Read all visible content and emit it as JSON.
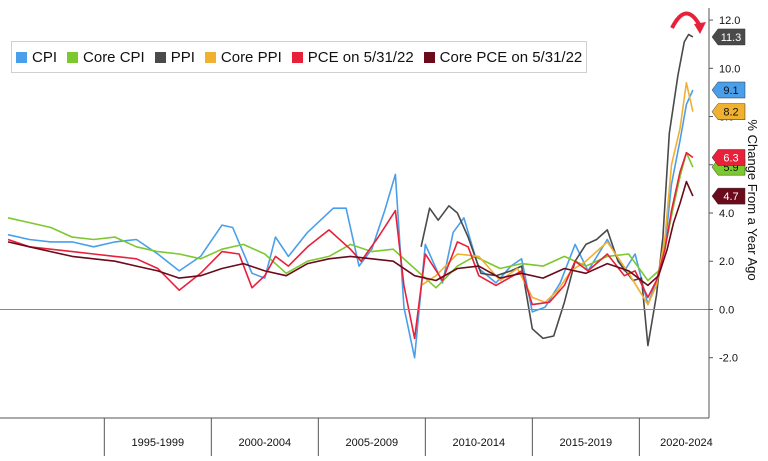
{
  "chart_data": {
    "type": "line",
    "ylabel": "% Change From a Year Ago",
    "ylim": [
      -4.5,
      12.5
    ],
    "yticks": [
      12.0,
      10.0,
      8.0,
      6.0,
      4.0,
      2.0,
      0.0,
      -2.0
    ],
    "ytick_labels": [
      "12.0",
      "10.0",
      "8.0",
      "6.0",
      "4.0",
      "2.0",
      "0.0",
      "-2.0"
    ],
    "x_range": [
      1990.5,
      2022.6
    ],
    "x_groups": [
      {
        "label": "1995-1999",
        "start": 1995,
        "end": 2000
      },
      {
        "label": "2000-2004",
        "start": 2000,
        "end": 2005
      },
      {
        "label": "2005-2009",
        "start": 2005,
        "end": 2010
      },
      {
        "label": "2010-2014",
        "start": 2010,
        "end": 2015
      },
      {
        "label": "2015-2019",
        "start": 2015,
        "end": 2020
      },
      {
        "label": "2020-2024",
        "start": 2020,
        "end": 2025
      }
    ],
    "grid": false,
    "legend_position": "top-left",
    "series": [
      {
        "name": "CPI",
        "color": "#4a9fea",
        "end_label": "9.1",
        "points": [
          [
            1990.5,
            3.1
          ],
          [
            1991.5,
            2.9
          ],
          [
            1992.5,
            2.8
          ],
          [
            1993.5,
            2.8
          ],
          [
            1994.5,
            2.6
          ],
          [
            1995.5,
            2.8
          ],
          [
            1996.5,
            2.9
          ],
          [
            1997.5,
            2.3
          ],
          [
            1998.5,
            1.6
          ],
          [
            1999.5,
            2.2
          ],
          [
            2000.5,
            3.5
          ],
          [
            2001.0,
            3.4
          ],
          [
            2001.9,
            1.5
          ],
          [
            2002.5,
            1.3
          ],
          [
            2003.0,
            3.0
          ],
          [
            2003.6,
            2.2
          ],
          [
            2004.5,
            3.2
          ],
          [
            2005.7,
            4.2
          ],
          [
            2006.3,
            4.2
          ],
          [
            2006.9,
            1.8
          ],
          [
            2007.5,
            2.5
          ],
          [
            2008.1,
            4.1
          ],
          [
            2008.6,
            5.6
          ],
          [
            2009.0,
            0.1
          ],
          [
            2009.5,
            -2.0
          ],
          [
            2010.0,
            2.7
          ],
          [
            2010.8,
            1.1
          ],
          [
            2011.3,
            3.2
          ],
          [
            2011.8,
            3.8
          ],
          [
            2012.5,
            1.7
          ],
          [
            2013.3,
            1.1
          ],
          [
            2014.0,
            1.8
          ],
          [
            2014.5,
            2.1
          ],
          [
            2015.0,
            -0.1
          ],
          [
            2015.6,
            0.1
          ],
          [
            2016.3,
            1.1
          ],
          [
            2017.0,
            2.7
          ],
          [
            2017.6,
            1.6
          ],
          [
            2018.5,
            2.9
          ],
          [
            2019.3,
            1.6
          ],
          [
            2019.8,
            2.3
          ],
          [
            2020.4,
            0.2
          ],
          [
            2020.8,
            1.2
          ],
          [
            2021.2,
            2.6
          ],
          [
            2021.5,
            5.2
          ],
          [
            2021.9,
            7.0
          ],
          [
            2022.2,
            8.5
          ],
          [
            2022.5,
            9.1
          ]
        ]
      },
      {
        "name": "Core CPI",
        "color": "#7cc82f",
        "end_label": "5.9",
        "points": [
          [
            1990.5,
            3.8
          ],
          [
            1991.5,
            3.6
          ],
          [
            1992.5,
            3.4
          ],
          [
            1993.5,
            3.0
          ],
          [
            1994.5,
            2.9
          ],
          [
            1995.5,
            3.0
          ],
          [
            1996.5,
            2.6
          ],
          [
            1997.5,
            2.4
          ],
          [
            1998.5,
            2.3
          ],
          [
            1999.5,
            2.1
          ],
          [
            2000.5,
            2.5
          ],
          [
            2001.5,
            2.7
          ],
          [
            2002.5,
            2.3
          ],
          [
            2003.5,
            1.5
          ],
          [
            2004.5,
            2.0
          ],
          [
            2005.5,
            2.2
          ],
          [
            2006.5,
            2.7
          ],
          [
            2007.5,
            2.4
          ],
          [
            2008.5,
            2.5
          ],
          [
            2009.5,
            1.7
          ],
          [
            2010.5,
            0.9
          ],
          [
            2011.5,
            1.8
          ],
          [
            2012.3,
            2.2
          ],
          [
            2013.5,
            1.7
          ],
          [
            2014.5,
            1.9
          ],
          [
            2015.5,
            1.8
          ],
          [
            2016.5,
            2.2
          ],
          [
            2017.5,
            1.8
          ],
          [
            2018.5,
            2.2
          ],
          [
            2019.5,
            2.3
          ],
          [
            2020.4,
            1.2
          ],
          [
            2020.9,
            1.6
          ],
          [
            2021.3,
            3.0
          ],
          [
            2021.6,
            4.3
          ],
          [
            2021.9,
            5.5
          ],
          [
            2022.2,
            6.5
          ],
          [
            2022.5,
            5.9
          ]
        ]
      },
      {
        "name": "PPI",
        "color": "#4a4a4a",
        "end_label": "11.3",
        "points": [
          [
            2009.8,
            2.6
          ],
          [
            2010.2,
            4.2
          ],
          [
            2010.6,
            3.7
          ],
          [
            2011.1,
            4.3
          ],
          [
            2011.5,
            4.0
          ],
          [
            2012.0,
            3.0
          ],
          [
            2012.6,
            1.5
          ],
          [
            2013.3,
            1.4
          ],
          [
            2014.0,
            1.6
          ],
          [
            2014.5,
            1.8
          ],
          [
            2015.0,
            -0.8
          ],
          [
            2015.5,
            -1.2
          ],
          [
            2016.0,
            -1.1
          ],
          [
            2016.5,
            0.3
          ],
          [
            2017.0,
            2.0
          ],
          [
            2017.5,
            2.7
          ],
          [
            2018.0,
            2.9
          ],
          [
            2018.5,
            3.3
          ],
          [
            2019.0,
            2.0
          ],
          [
            2019.7,
            1.2
          ],
          [
            2020.1,
            1.3
          ],
          [
            2020.4,
            -1.5
          ],
          [
            2020.8,
            0.6
          ],
          [
            2021.1,
            3.0
          ],
          [
            2021.4,
            7.3
          ],
          [
            2021.8,
            9.7
          ],
          [
            2022.1,
            11.1
          ],
          [
            2022.3,
            11.4
          ],
          [
            2022.5,
            11.3
          ]
        ]
      },
      {
        "name": "Core PPI",
        "color": "#f0b030",
        "end_label": "8.2",
        "points": [
          [
            2009.8,
            1.0
          ],
          [
            2010.5,
            1.4
          ],
          [
            2011.5,
            2.3
          ],
          [
            2012.5,
            2.2
          ],
          [
            2013.5,
            1.2
          ],
          [
            2014.3,
            1.7
          ],
          [
            2015.0,
            0.5
          ],
          [
            2015.6,
            0.3
          ],
          [
            2016.2,
            0.8
          ],
          [
            2016.8,
            1.6
          ],
          [
            2017.5,
            2.0
          ],
          [
            2018.5,
            2.8
          ],
          [
            2019.5,
            1.5
          ],
          [
            2020.4,
            0.2
          ],
          [
            2020.8,
            1.0
          ],
          [
            2021.2,
            3.0
          ],
          [
            2021.5,
            6.0
          ],
          [
            2021.9,
            7.5
          ],
          [
            2022.2,
            9.4
          ],
          [
            2022.5,
            8.2
          ]
        ]
      },
      {
        "name": "PCE on 5/31/22",
        "color": "#e8203a",
        "end_label": "6.3",
        "points": [
          [
            1990.5,
            2.9
          ],
          [
            1991.5,
            2.6
          ],
          [
            1992.5,
            2.5
          ],
          [
            1993.5,
            2.4
          ],
          [
            1994.5,
            2.3
          ],
          [
            1995.5,
            2.2
          ],
          [
            1996.5,
            2.1
          ],
          [
            1997.5,
            1.7
          ],
          [
            1998.5,
            0.8
          ],
          [
            1999.5,
            1.5
          ],
          [
            2000.5,
            2.4
          ],
          [
            2001.3,
            2.3
          ],
          [
            2001.9,
            0.9
          ],
          [
            2002.5,
            1.4
          ],
          [
            2003.0,
            2.2
          ],
          [
            2003.6,
            1.8
          ],
          [
            2004.5,
            2.6
          ],
          [
            2005.5,
            3.3
          ],
          [
            2006.5,
            2.5
          ],
          [
            2007.0,
            2.0
          ],
          [
            2007.8,
            3.0
          ],
          [
            2008.6,
            4.1
          ],
          [
            2009.0,
            1.0
          ],
          [
            2009.5,
            -1.2
          ],
          [
            2010.0,
            2.3
          ],
          [
            2010.8,
            1.2
          ],
          [
            2011.5,
            2.8
          ],
          [
            2012.0,
            2.6
          ],
          [
            2012.5,
            1.4
          ],
          [
            2013.3,
            1.0
          ],
          [
            2014.5,
            1.6
          ],
          [
            2015.0,
            0.2
          ],
          [
            2015.8,
            0.3
          ],
          [
            2016.5,
            1.0
          ],
          [
            2017.0,
            2.0
          ],
          [
            2017.6,
            1.6
          ],
          [
            2018.5,
            2.3
          ],
          [
            2019.3,
            1.4
          ],
          [
            2019.8,
            1.6
          ],
          [
            2020.4,
            0.5
          ],
          [
            2020.8,
            1.2
          ],
          [
            2021.2,
            2.5
          ],
          [
            2021.5,
            4.1
          ],
          [
            2021.9,
            5.7
          ],
          [
            2022.2,
            6.5
          ],
          [
            2022.5,
            6.3
          ]
        ]
      },
      {
        "name": "Core PCE on 5/31/22",
        "color": "#6b0a1a",
        "end_label": "4.7",
        "points": [
          [
            1990.5,
            2.8
          ],
          [
            1991.5,
            2.6
          ],
          [
            1992.5,
            2.4
          ],
          [
            1993.5,
            2.2
          ],
          [
            1994.5,
            2.1
          ],
          [
            1995.5,
            2.0
          ],
          [
            1996.5,
            1.8
          ],
          [
            1997.5,
            1.6
          ],
          [
            1998.5,
            1.3
          ],
          [
            1999.5,
            1.4
          ],
          [
            2000.5,
            1.7
          ],
          [
            2001.5,
            1.9
          ],
          [
            2002.5,
            1.6
          ],
          [
            2003.5,
            1.4
          ],
          [
            2004.5,
            1.9
          ],
          [
            2005.5,
            2.1
          ],
          [
            2006.5,
            2.2
          ],
          [
            2007.5,
            2.1
          ],
          [
            2008.5,
            2.0
          ],
          [
            2009.5,
            1.4
          ],
          [
            2010.5,
            1.2
          ],
          [
            2011.5,
            1.7
          ],
          [
            2012.5,
            1.8
          ],
          [
            2013.5,
            1.3
          ],
          [
            2014.5,
            1.5
          ],
          [
            2015.5,
            1.3
          ],
          [
            2016.5,
            1.7
          ],
          [
            2017.5,
            1.5
          ],
          [
            2018.5,
            1.9
          ],
          [
            2019.5,
            1.6
          ],
          [
            2020.4,
            1.0
          ],
          [
            2020.9,
            1.4
          ],
          [
            2021.3,
            2.5
          ],
          [
            2021.6,
            3.6
          ],
          [
            2021.9,
            4.4
          ],
          [
            2022.2,
            5.3
          ],
          [
            2022.5,
            4.7
          ]
        ]
      }
    ]
  }
}
